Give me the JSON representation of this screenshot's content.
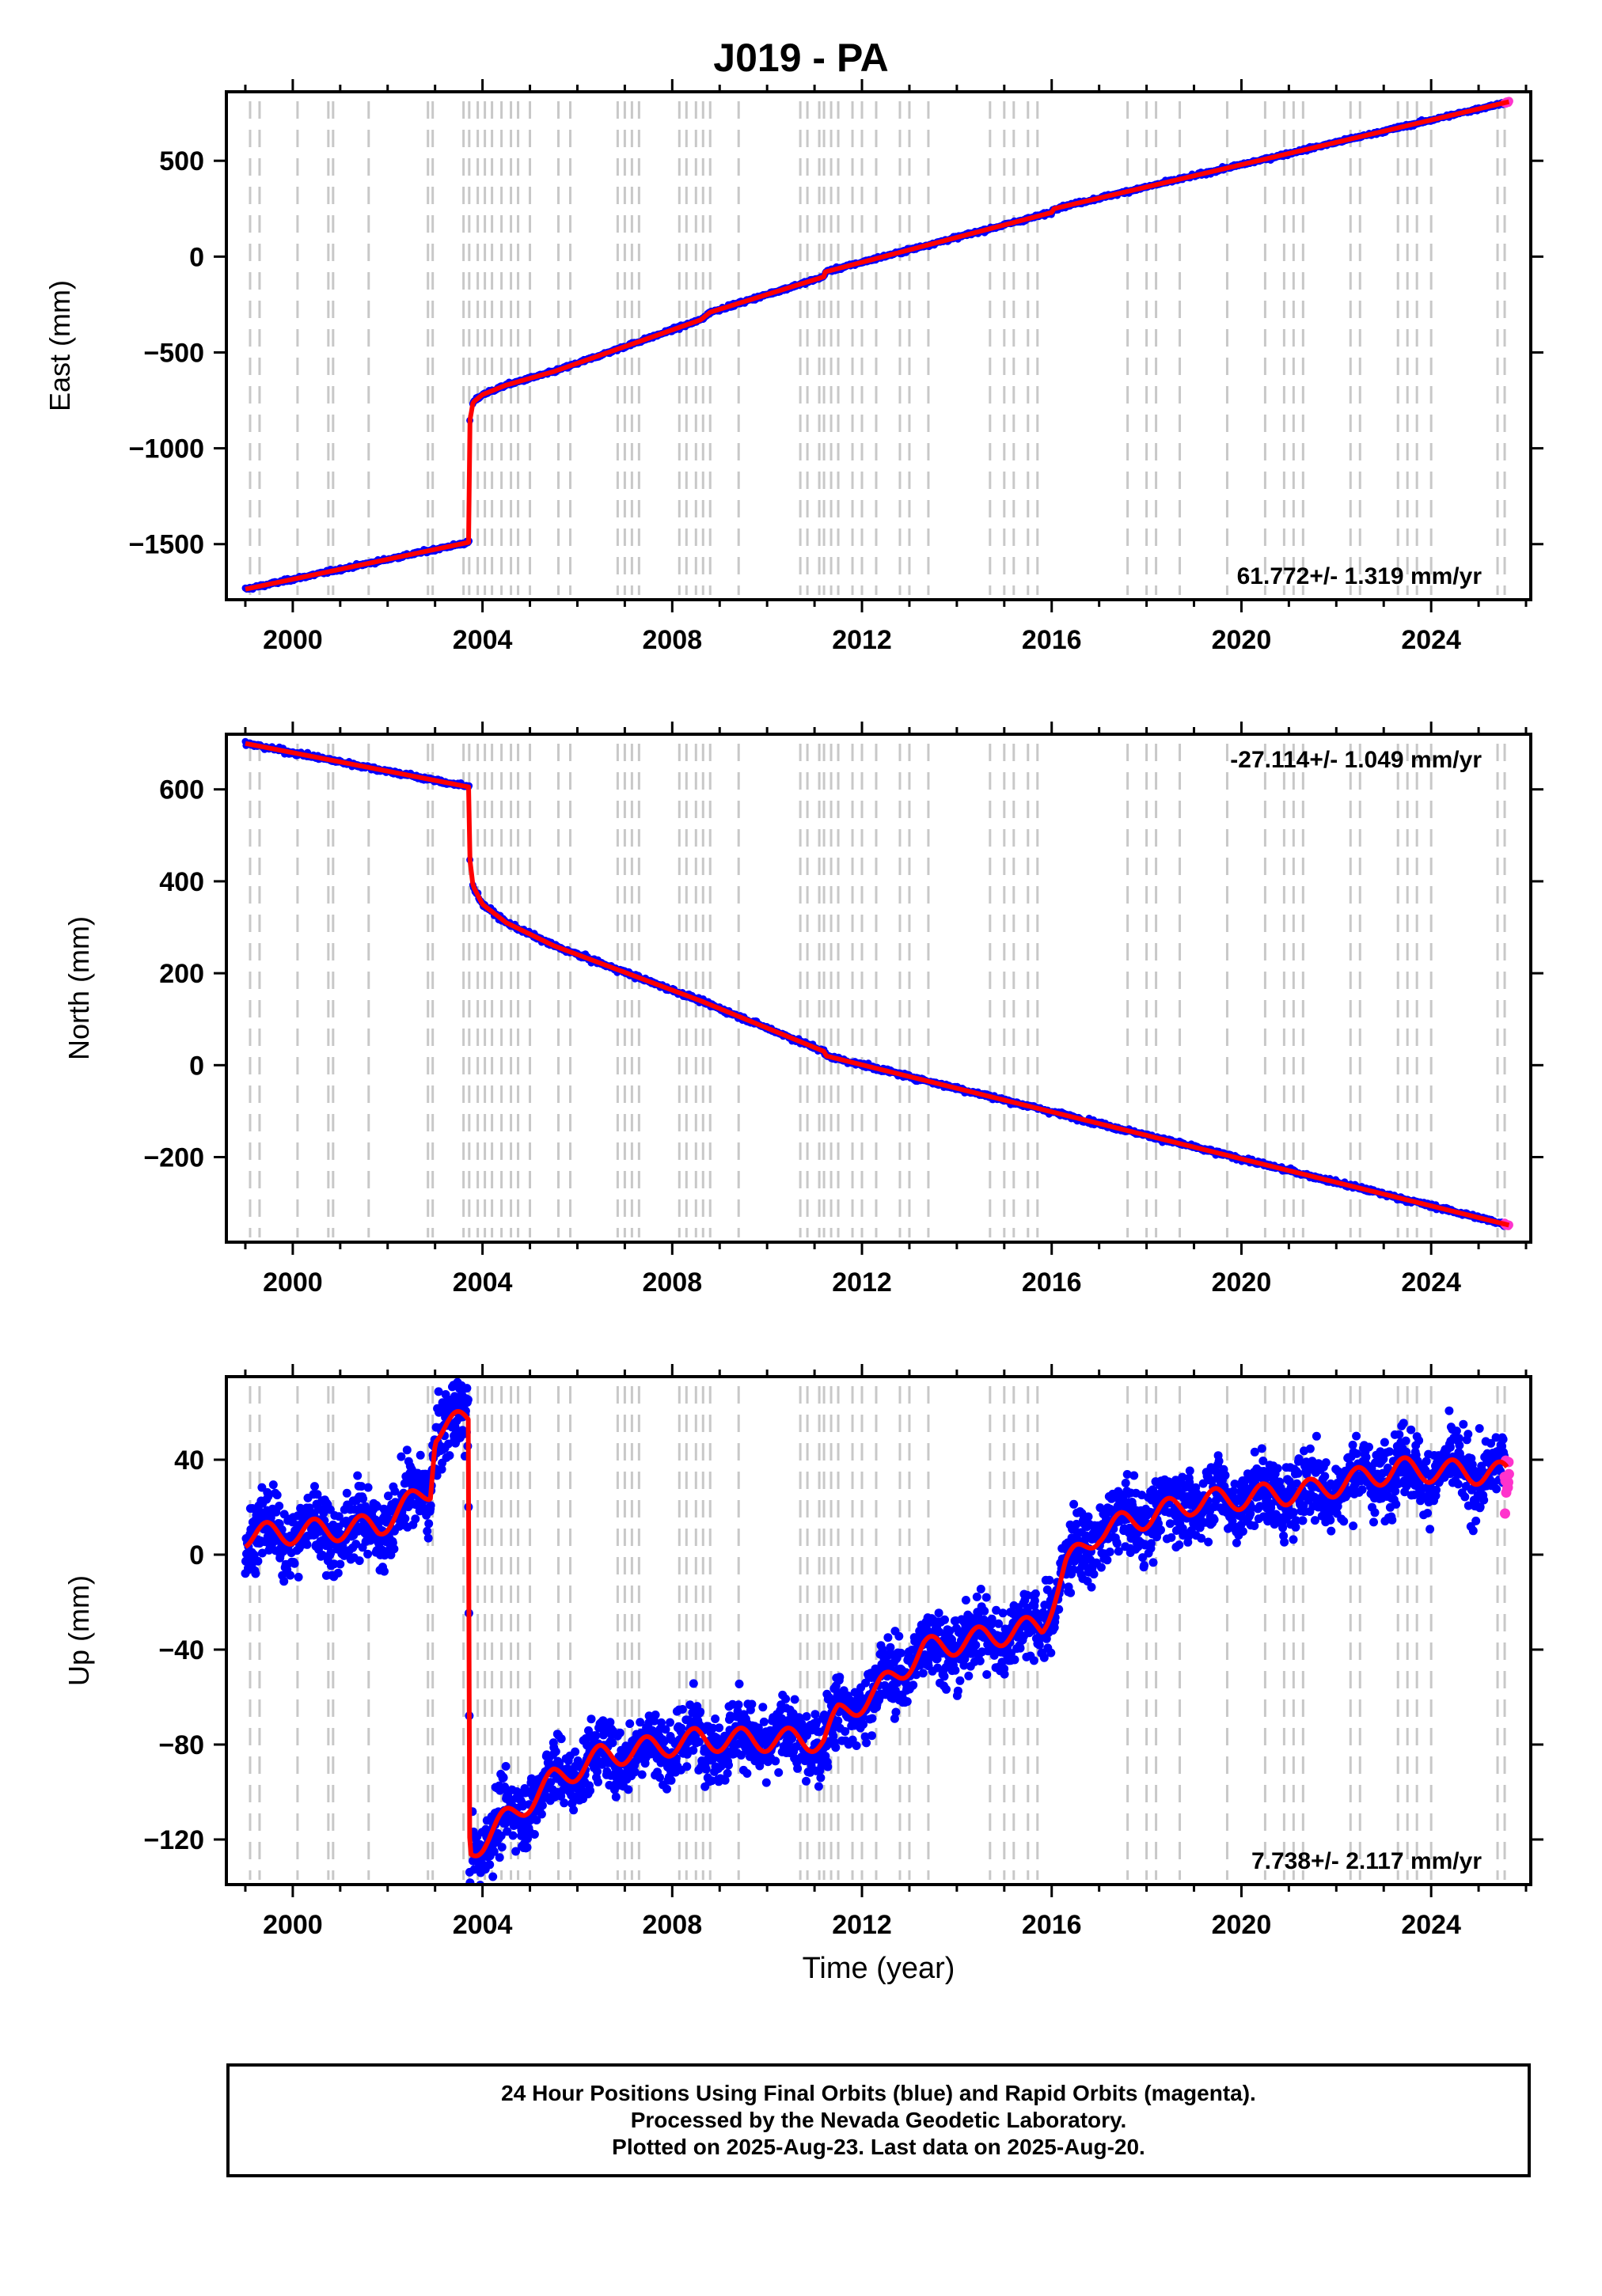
{
  "title": "J019 - PA",
  "x_axis_label": "Time (year)",
  "footer_lines": [
    "24 Hour Positions Using Final Orbits (blue) and Rapid Orbits (magenta).",
    "Processed by the Nevada Geodetic Laboratory.",
    "Plotted on 2025-Aug-23. Last data on 2025-Aug-20."
  ],
  "colors": {
    "final_orbits": "#0000ff",
    "rapid_orbits": "#ff33cc",
    "model_fit": "#ff0000",
    "event_lines": "#c8c8c8"
  },
  "chart_data": [
    {
      "type": "scatter",
      "component": "east",
      "ylabel": "East (mm)",
      "xlim": [
        1998.6,
        2026.1
      ],
      "ylim": [
        -1790,
        860
      ],
      "yticks": [
        -1500,
        -1000,
        -500,
        0,
        500
      ],
      "xticks": [
        2000,
        2004,
        2008,
        2012,
        2016,
        2020,
        2024
      ],
      "grid": false,
      "rate_label": "61.772+/- 1.319 mm/yr",
      "rate_label_position": "bottom-right",
      "model_breakpoints": [
        [
          1999.0,
          -1735
        ],
        [
          2003.72,
          -1490
        ],
        [
          2003.73,
          -860
        ],
        [
          2003.8,
          -760
        ],
        [
          2004.0,
          -720
        ],
        [
          2004.5,
          -670
        ],
        [
          2005.5,
          -600
        ],
        [
          2008.6,
          -330
        ],
        [
          2008.8,
          -290
        ],
        [
          2011.2,
          -105
        ],
        [
          2011.22,
          -80
        ],
        [
          2016.0,
          230
        ],
        [
          2016.05,
          250
        ],
        [
          2025.64,
          808
        ]
      ],
      "series": [
        {
          "name": "Final Orbits",
          "color": "#0000ff",
          "x_range": [
            1999.0,
            2025.55
          ]
        },
        {
          "name": "Rapid Orbits",
          "color": "#ff33cc",
          "x_range": [
            2025.55,
            2025.64
          ]
        }
      ]
    },
    {
      "type": "scatter",
      "component": "north",
      "ylabel": "North (mm)",
      "xlim": [
        1998.6,
        2026.1
      ],
      "ylim": [
        -385,
        720
      ],
      "yticks": [
        -200,
        0,
        200,
        400,
        600
      ],
      "xticks": [
        2000,
        2004,
        2008,
        2012,
        2016,
        2020,
        2024
      ],
      "grid": false,
      "rate_label": "-27.114+/- 1.049 mm/yr",
      "rate_label_position": "top-right",
      "model_breakpoints": [
        [
          1999.0,
          700
        ],
        [
          2003.72,
          605
        ],
        [
          2003.73,
          450
        ],
        [
          2003.8,
          390
        ],
        [
          2004.0,
          350
        ],
        [
          2004.5,
          310
        ],
        [
          2005.5,
          260
        ],
        [
          2008.6,
          140
        ],
        [
          2011.2,
          30
        ],
        [
          2011.25,
          20
        ],
        [
          2025.64,
          -348
        ]
      ],
      "series": [
        {
          "name": "Final Orbits",
          "color": "#0000ff",
          "x_range": [
            1999.0,
            2025.55
          ]
        },
        {
          "name": "Rapid Orbits",
          "color": "#ff33cc",
          "x_range": [
            2025.55,
            2025.64
          ]
        }
      ]
    },
    {
      "type": "scatter",
      "component": "up",
      "ylabel": "Up (mm)",
      "xlim": [
        1998.6,
        2026.1
      ],
      "ylim": [
        -139,
        75
      ],
      "yticks": [
        -120,
        -80,
        -40,
        0,
        40
      ],
      "xticks": [
        2000,
        2004,
        2008,
        2012,
        2016,
        2020,
        2024
      ],
      "grid": false,
      "rate_label": "7.738+/- 2.117 mm/yr",
      "rate_label_position": "bottom-right",
      "model_breakpoints": [
        [
          1999.0,
          8
        ],
        [
          2001.8,
          12
        ],
        [
          2002.9,
          28
        ],
        [
          2003.0,
          52
        ],
        [
          2003.7,
          57
        ],
        [
          2003.73,
          -125
        ],
        [
          2004.3,
          -115
        ],
        [
          2005.5,
          -95
        ],
        [
          2006.5,
          -85
        ],
        [
          2008.5,
          -78
        ],
        [
          2011.2,
          -78
        ],
        [
          2011.5,
          -68
        ],
        [
          2012.3,
          -58
        ],
        [
          2013.3,
          -40
        ],
        [
          2015.8,
          -30
        ],
        [
          2016.3,
          -5
        ],
        [
          2017.0,
          10
        ],
        [
          2019.0,
          22
        ],
        [
          2021.5,
          27
        ],
        [
          2023.3,
          36
        ],
        [
          2025.6,
          34
        ]
      ],
      "series": [
        {
          "name": "Final Orbits",
          "color": "#0000ff",
          "x_range": [
            1999.0,
            2025.55
          ]
        },
        {
          "name": "Rapid Orbits",
          "color": "#ff33cc",
          "x_range": [
            2025.55,
            2025.64
          ]
        }
      ]
    }
  ],
  "event_line_years": [
    1999.1,
    1999.3,
    2000.1,
    2000.75,
    2000.85,
    2001.6,
    2002.85,
    2002.95,
    2003.6,
    2003.72,
    2003.9,
    2004.05,
    2004.2,
    2004.4,
    2004.6,
    2004.75,
    2005.0,
    2005.6,
    2005.85,
    2006.85,
    2007.0,
    2007.15,
    2007.3,
    2008.15,
    2008.3,
    2008.5,
    2008.65,
    2008.8,
    2009.4,
    2010.7,
    2010.85,
    2011.1,
    2011.2,
    2011.35,
    2011.5,
    2011.8,
    2012.0,
    2012.3,
    2012.8,
    2013.0,
    2013.4,
    2014.7,
    2015.0,
    2015.2,
    2015.5,
    2015.7,
    2017.6,
    2018.0,
    2018.2,
    2018.7,
    2019.7,
    2020.5,
    2020.9,
    2021.1,
    2021.3,
    2022.3,
    2022.5,
    2023.3,
    2023.5,
    2023.7,
    2024.0,
    2025.4,
    2025.55
  ]
}
